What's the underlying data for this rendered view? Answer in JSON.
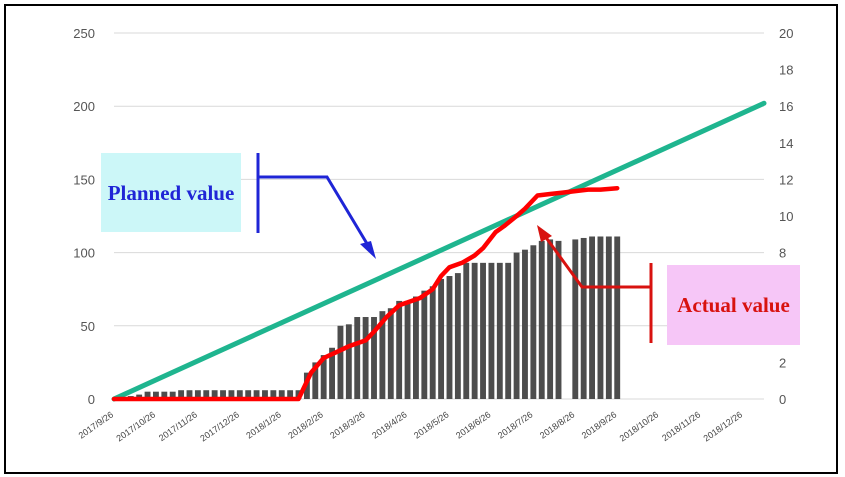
{
  "colors": {
    "planned": "#1fb58f",
    "actual": "#ff0000",
    "bars": "#4d4d4d",
    "planned_annotation": "#1f25d6",
    "actual_annotation": "#d8120f",
    "planned_box": "#ccf7f8",
    "actual_box": "#f6c6f7"
  },
  "annotations": {
    "planned": "Planned value",
    "actual": "Actual value"
  },
  "chart_data": {
    "type": "bar+line",
    "title": "",
    "ylabel": "",
    "y2label": "",
    "ylim": [
      0,
      250
    ],
    "y2lim": [
      0,
      20
    ],
    "yticks": [
      "250",
      "200",
      "150",
      "100",
      "50",
      "0"
    ],
    "y2ticks": [
      "20",
      "18",
      "16",
      "14",
      "12",
      "10",
      "8",
      "6",
      "4",
      "2",
      "0"
    ],
    "grid": true,
    "x_tick_labels": [
      "2017/9/26",
      "2017/10/26",
      "2017/11/26",
      "2017/12/26",
      "2018/1/26",
      "2018/2/26",
      "2018/3/26",
      "2018/4/26",
      "2018/5/26",
      "2018/6/26",
      "2018/7/26",
      "2018/8/26",
      "2018/9/26",
      "2018/10/26",
      "2018/11/26",
      "2018/12/26"
    ],
    "bars_axis": "left",
    "bars": [
      {
        "x": 0.4,
        "value": 2
      },
      {
        "x": 0.6,
        "value": 3
      },
      {
        "x": 0.8,
        "value": 5
      },
      {
        "x": 1.0,
        "value": 5
      },
      {
        "x": 1.2,
        "value": 5
      },
      {
        "x": 1.4,
        "value": 5
      },
      {
        "x": 1.6,
        "value": 6
      },
      {
        "x": 1.8,
        "value": 6
      },
      {
        "x": 2.0,
        "value": 6
      },
      {
        "x": 2.2,
        "value": 6
      },
      {
        "x": 2.4,
        "value": 6
      },
      {
        "x": 2.6,
        "value": 6
      },
      {
        "x": 2.8,
        "value": 6
      },
      {
        "x": 3.0,
        "value": 6
      },
      {
        "x": 3.2,
        "value": 6
      },
      {
        "x": 3.4,
        "value": 6
      },
      {
        "x": 3.6,
        "value": 6
      },
      {
        "x": 3.8,
        "value": 6
      },
      {
        "x": 4.0,
        "value": 6
      },
      {
        "x": 4.2,
        "value": 6
      },
      {
        "x": 4.4,
        "value": 6
      },
      {
        "x": 4.6,
        "value": 18
      },
      {
        "x": 4.8,
        "value": 25
      },
      {
        "x": 5.0,
        "value": 30
      },
      {
        "x": 5.2,
        "value": 35
      },
      {
        "x": 5.4,
        "value": 50
      },
      {
        "x": 5.6,
        "value": 51
      },
      {
        "x": 5.8,
        "value": 56
      },
      {
        "x": 6.0,
        "value": 56
      },
      {
        "x": 6.2,
        "value": 56
      },
      {
        "x": 6.4,
        "value": 60
      },
      {
        "x": 6.6,
        "value": 62
      },
      {
        "x": 6.8,
        "value": 67
      },
      {
        "x": 7.0,
        "value": 67
      },
      {
        "x": 7.2,
        "value": 70
      },
      {
        "x": 7.4,
        "value": 74
      },
      {
        "x": 7.6,
        "value": 77
      },
      {
        "x": 7.8,
        "value": 82
      },
      {
        "x": 8.0,
        "value": 84
      },
      {
        "x": 8.2,
        "value": 86
      },
      {
        "x": 8.4,
        "value": 93
      },
      {
        "x": 8.6,
        "value": 93
      },
      {
        "x": 8.8,
        "value": 93
      },
      {
        "x": 9.0,
        "value": 93
      },
      {
        "x": 9.2,
        "value": 93
      },
      {
        "x": 9.4,
        "value": 93
      },
      {
        "x": 9.6,
        "value": 100
      },
      {
        "x": 9.8,
        "value": 102
      },
      {
        "x": 10.0,
        "value": 105
      },
      {
        "x": 10.2,
        "value": 108
      },
      {
        "x": 10.4,
        "value": 109
      },
      {
        "x": 10.6,
        "value": 108
      },
      {
        "x": 11.0,
        "value": 109
      },
      {
        "x": 11.2,
        "value": 110
      },
      {
        "x": 11.4,
        "value": 111
      },
      {
        "x": 11.6,
        "value": 111
      },
      {
        "x": 11.8,
        "value": 111
      },
      {
        "x": 12.0,
        "value": 111
      }
    ],
    "series": [
      {
        "axis": "left",
        "x": [
          0,
          15.5
        ],
        "values": [
          0,
          202
        ]
      },
      {
        "axis": "left",
        "x": [
          0,
          1,
          2,
          3,
          4,
          4.4,
          4.7,
          5.0,
          5.3,
          5.6,
          6.0,
          6.2,
          6.5,
          6.8,
          7.0,
          7.3,
          7.6,
          7.8,
          8.0,
          8.3,
          8.6,
          8.8,
          9.1,
          9.3,
          9.6,
          9.8,
          10.1,
          10.4,
          10.7,
          11.0,
          11.3,
          11.6,
          12.0
        ],
        "values": [
          0,
          0,
          0,
          0,
          0,
          0,
          18,
          28,
          32,
          36,
          40,
          46,
          56,
          64,
          66,
          69,
          75,
          84,
          90,
          93,
          98,
          103,
          114,
          118,
          125,
          130,
          139,
          140,
          141,
          142,
          143,
          143,
          144
        ]
      }
    ]
  }
}
